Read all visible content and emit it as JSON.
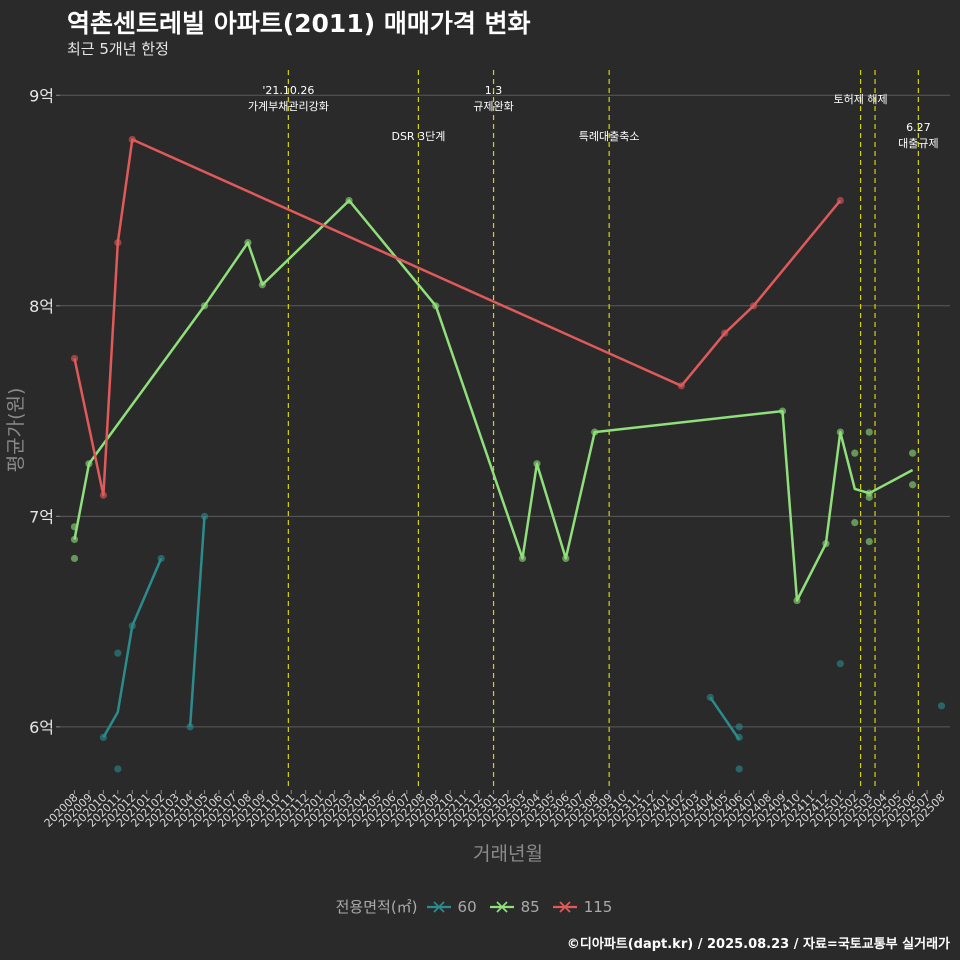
{
  "title": "역촌센트레빌 아파트(2011) 매매가격 변화",
  "subtitle": "최근 5개년 한정",
  "caption": "©디아파트(dapt.kr) / 2025.08.23 / 자료=국토교통부 실거래가",
  "legend": {
    "title": "전용면적(㎡)",
    "items": [
      {
        "label": "60",
        "color": "#2a8c8c"
      },
      {
        "label": "85",
        "color": "#8fe07a"
      },
      {
        "label": "115",
        "color": "#e05a5a"
      }
    ]
  },
  "chart_data": {
    "type": "line",
    "title": "역촌센트레빌 아파트(2011) 매매가격 변화",
    "xlabel": "거래년월",
    "ylabel": "평균가(원)",
    "ylim": [
      5.7,
      9.12
    ],
    "yticks": [
      {
        "value": 6,
        "label": "6억"
      },
      {
        "value": 7,
        "label": "7억"
      },
      {
        "value": 8,
        "label": "8억"
      },
      {
        "value": 9,
        "label": "9억"
      }
    ],
    "x_categories": [
      "202008",
      "202009",
      "202010",
      "202011",
      "202012",
      "202101",
      "202102",
      "202103",
      "202104",
      "202105",
      "202106",
      "202107",
      "202108",
      "202109",
      "202110",
      "202111",
      "202112",
      "202201",
      "202202",
      "202203",
      "202204",
      "202205",
      "202206",
      "202207",
      "202208",
      "202209",
      "202210",
      "202211",
      "202212",
      "202301",
      "202302",
      "202303",
      "202304",
      "202305",
      "202306",
      "202307",
      "202308",
      "202309",
      "202310",
      "202311",
      "202312",
      "202401",
      "202402",
      "202403",
      "202404",
      "202405",
      "202406",
      "202407",
      "202408",
      "202409",
      "202410",
      "202411",
      "202412",
      "202501",
      "202502",
      "202503",
      "202504",
      "202505",
      "202506",
      "202507",
      "202508"
    ],
    "events": [
      {
        "x": 202110.8,
        "label": "'21.10.26\n가계부채관리강화",
        "pos": "high"
      },
      {
        "x": 202207.8,
        "label": "DSR 3단계",
        "pos": "low"
      },
      {
        "x": 202301.0,
        "label": "1.3\n규제완화",
        "pos": "high"
      },
      {
        "x": 202309.0,
        "label": "특례대출축소",
        "pos": "low"
      },
      {
        "x": 202502.4,
        "label": "토허제 해제",
        "pos": "mid"
      },
      {
        "x": 202503.4,
        "label": "",
        "pos": "mid"
      },
      {
        "x": 202506.4,
        "label": "6.27\n대출규제",
        "pos": "low2"
      }
    ],
    "series": [
      {
        "name": "60",
        "color": "#2a8c8c",
        "segments": [
          [
            [
              "202010",
              5.95
            ],
            [
              "202011",
              6.07
            ],
            [
              "202012",
              6.48
            ],
            [
              "202102",
              6.8
            ]
          ],
          [
            [
              "202104",
              6.0
            ],
            [
              "202105",
              7.0
            ]
          ],
          [
            [
              "202404",
              6.14
            ],
            [
              "202406",
              5.94
            ]
          ]
        ],
        "points": [
          [
            "202010",
            5.95
          ],
          [
            "202011",
            6.35
          ],
          [
            "202011",
            5.8
          ],
          [
            "202012",
            6.48
          ],
          [
            "202102",
            6.8
          ],
          [
            "202104",
            6.0
          ],
          [
            "202105",
            7.0
          ],
          [
            "202404",
            6.14
          ],
          [
            "202406",
            6.0
          ],
          [
            "202406",
            5.95
          ],
          [
            "202406",
            5.8
          ],
          [
            "202501",
            6.3
          ],
          [
            "202508",
            6.1
          ]
        ]
      },
      {
        "name": "85",
        "color": "#8fe07a",
        "segments": [
          [
            [
              "202008",
              6.89
            ],
            [
              "202009",
              7.25
            ],
            [
              "202105",
              8.0
            ],
            [
              "202108",
              8.3
            ],
            [
              "202109",
              8.1
            ],
            [
              "202203",
              8.5
            ],
            [
              "202209",
              8.0
            ],
            [
              "202303",
              6.8
            ],
            [
              "202304",
              7.25
            ],
            [
              "202306",
              6.8
            ],
            [
              "202308",
              7.4
            ],
            [
              "202409",
              7.5
            ],
            [
              "202410",
              6.6
            ],
            [
              "202412",
              6.87
            ],
            [
              "202501",
              7.4
            ],
            [
              "202502",
              7.13
            ],
            [
              "202503",
              7.11
            ],
            [
              "202506",
              7.22
            ]
          ]
        ],
        "points": [
          [
            "202008",
            6.95
          ],
          [
            "202008",
            6.89
          ],
          [
            "202008",
            6.8
          ],
          [
            "202009",
            7.25
          ],
          [
            "202105",
            8.0
          ],
          [
            "202108",
            8.3
          ],
          [
            "202109",
            8.1
          ],
          [
            "202203",
            8.5
          ],
          [
            "202209",
            8.0
          ],
          [
            "202303",
            6.8
          ],
          [
            "202304",
            7.25
          ],
          [
            "202306",
            6.8
          ],
          [
            "202308",
            7.4
          ],
          [
            "202409",
            7.5
          ],
          [
            "202410",
            6.6
          ],
          [
            "202412",
            6.87
          ],
          [
            "202501",
            7.4
          ],
          [
            "202502",
            7.3
          ],
          [
            "202502",
            6.97
          ],
          [
            "202503",
            7.4
          ],
          [
            "202503",
            7.11
          ],
          [
            "202503",
            7.09
          ],
          [
            "202503",
            6.88
          ],
          [
            "202506",
            7.3
          ],
          [
            "202506",
            7.15
          ]
        ]
      },
      {
        "name": "115",
        "color": "#e05a5a",
        "segments": [
          [
            [
              "202008",
              7.75
            ],
            [
              "202010",
              7.1
            ],
            [
              "202011",
              8.3
            ],
            [
              "202012",
              8.79
            ],
            [
              "202402",
              7.62
            ],
            [
              "202405",
              7.87
            ],
            [
              "202407",
              8.0
            ],
            [
              "202501",
              8.5
            ]
          ]
        ],
        "points": [
          [
            "202008",
            7.75
          ],
          [
            "202010",
            7.1
          ],
          [
            "202011",
            8.3
          ],
          [
            "202012",
            8.79
          ],
          [
            "202402",
            7.62
          ],
          [
            "202405",
            7.87
          ],
          [
            "202407",
            8.0
          ],
          [
            "202501",
            8.5
          ]
        ]
      }
    ]
  }
}
